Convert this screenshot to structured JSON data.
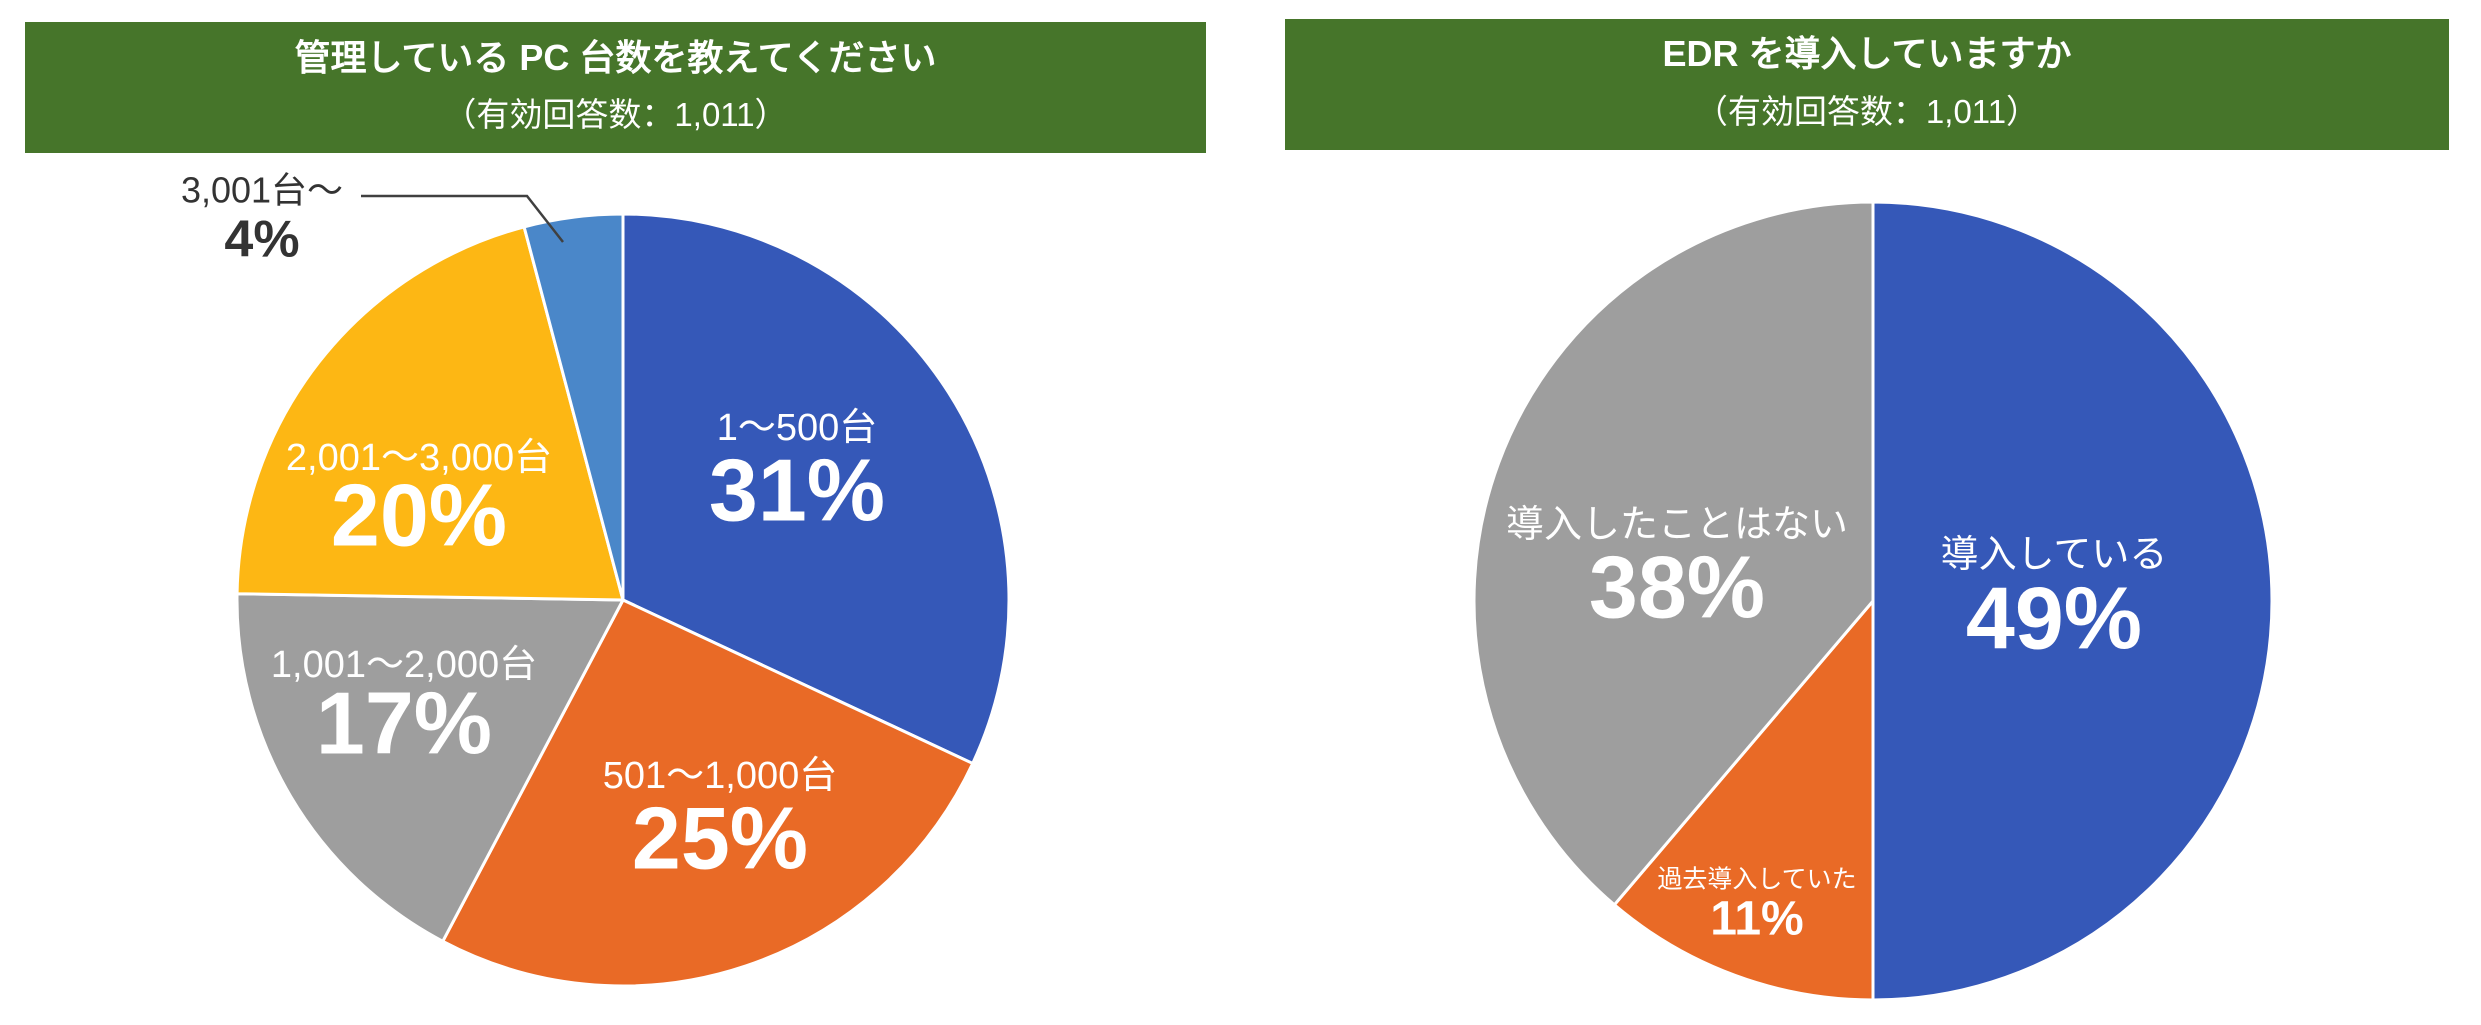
{
  "chart_data": [
    {
      "type": "pie",
      "title": "管理している PC 台数を教えてください",
      "subtitle": "（有効回答数：1,011）",
      "categories": [
        "1～500台",
        "501～1,000台",
        "1,001～2,000台",
        "2,001～3,000台",
        "3,001台～"
      ],
      "values": [
        31,
        25,
        17,
        20,
        4
      ],
      "unit": "%",
      "colors": [
        "#3558B8",
        "#E96A26",
        "#9E9E9E",
        "#FDB714",
        "#4A87C9"
      ],
      "header_color": "#46752A"
    },
    {
      "type": "pie",
      "title": "EDR を導入していますか",
      "subtitle": "（有効回答数：1,011）",
      "categories": [
        "導入している",
        "過去導入していた",
        "導入したことはない"
      ],
      "values": [
        49,
        11,
        38
      ],
      "unit": "%",
      "colors": [
        "#3558B8",
        "#E96A26",
        "#9E9E9E"
      ],
      "header_color": "#46752A"
    }
  ]
}
